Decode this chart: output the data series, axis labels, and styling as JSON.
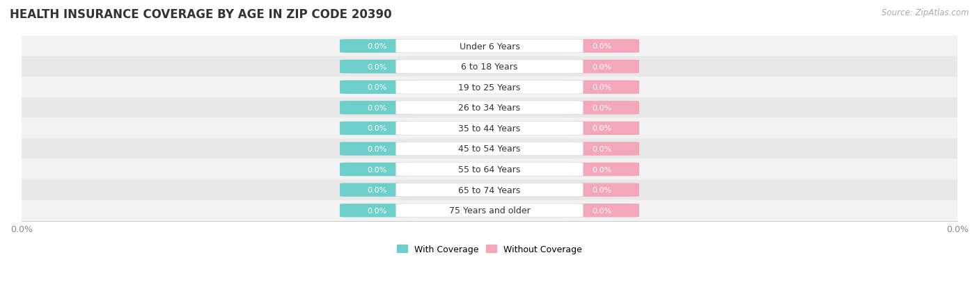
{
  "title": "HEALTH INSURANCE COVERAGE BY AGE IN ZIP CODE 20390",
  "source": "Source: ZipAtlas.com",
  "categories": [
    "Under 6 Years",
    "6 to 18 Years",
    "19 to 25 Years",
    "26 to 34 Years",
    "35 to 44 Years",
    "45 to 54 Years",
    "55 to 64 Years",
    "65 to 74 Years",
    "75 Years and older"
  ],
  "with_coverage": [
    0.0,
    0.0,
    0.0,
    0.0,
    0.0,
    0.0,
    0.0,
    0.0,
    0.0
  ],
  "without_coverage": [
    0.0,
    0.0,
    0.0,
    0.0,
    0.0,
    0.0,
    0.0,
    0.0,
    0.0
  ],
  "with_coverage_color": "#6ecfca",
  "without_coverage_color": "#f4a7bb",
  "row_bg_color_light": "#f2f2f2",
  "row_bg_color_dark": "#e8e8e8",
  "title_color": "#333333",
  "source_color": "#aaaaaa",
  "tick_label_color": "#888888",
  "bar_label_fontsize": 8,
  "category_fontsize": 9,
  "title_fontsize": 12,
  "source_fontsize": 8.5,
  "legend_fontsize": 9,
  "figsize": [
    14.06,
    4.14
  ],
  "dpi": 100
}
